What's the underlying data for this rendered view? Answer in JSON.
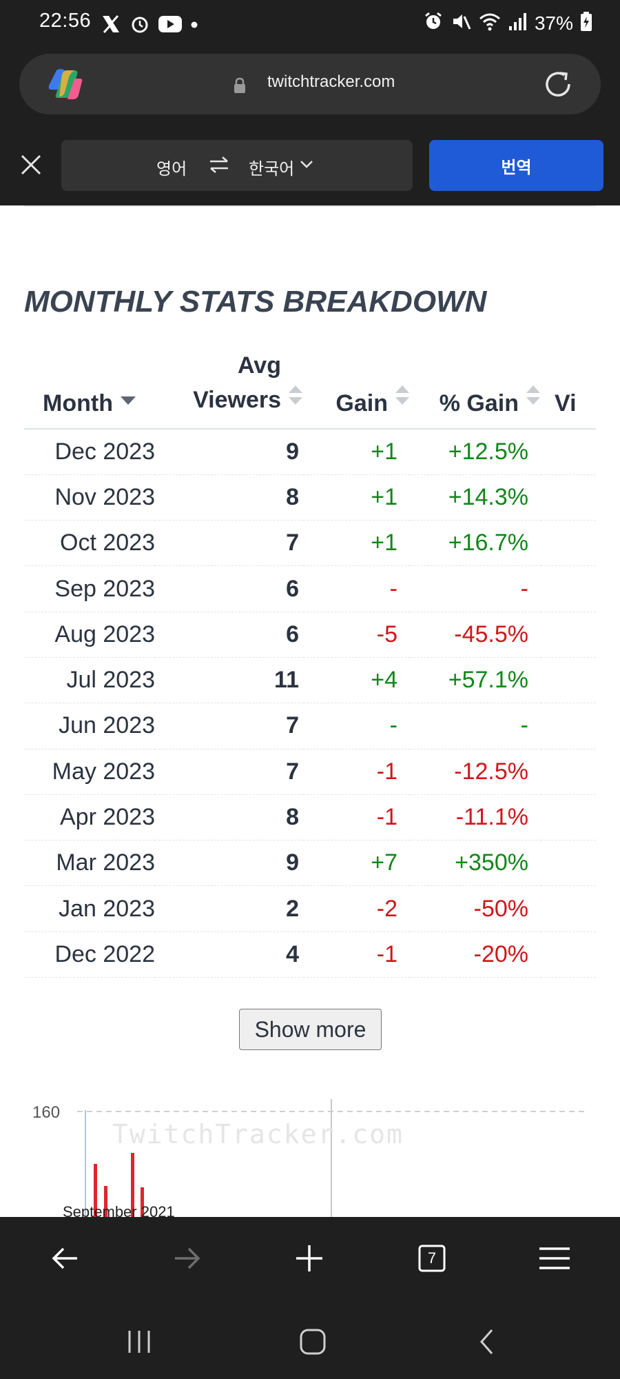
{
  "status_bar": {
    "time": "22:56",
    "battery": "37%",
    "left_icons": [
      "x-logo-icon",
      "alarm-clock-icon",
      "youtube-icon",
      "dot-icon"
    ],
    "right_icons": [
      "alarm-icon",
      "mute-icon",
      "wifi-icon",
      "signal-icon",
      "battery-charging-icon"
    ]
  },
  "browser": {
    "url": "twitchtracker.com",
    "tab_count": "7",
    "icons": [
      "copilot-logo-icon",
      "lock-icon",
      "reload-icon",
      "back-arrow-icon",
      "forward-arrow-icon",
      "plus-icon",
      "tabs-icon",
      "menu-icon"
    ]
  },
  "translate_bar": {
    "source_lang": "영어",
    "target_lang": "한국어",
    "translate_button": "번역"
  },
  "section_title": "MONTHLY STATS BREAKDOWN",
  "table": {
    "headers": {
      "month": "Month",
      "avg_viewers_line1": "Avg",
      "avg_viewers_line2": "Viewers",
      "gain": "Gain",
      "pct_gain": "% Gain",
      "next_column_partial": "Vi"
    },
    "rows": [
      {
        "month": "Dec 2023",
        "avg_viewers": "9",
        "gain": "+1",
        "pct_gain": "+12.5%",
        "trend": "pos"
      },
      {
        "month": "Nov 2023",
        "avg_viewers": "8",
        "gain": "+1",
        "pct_gain": "+14.3%",
        "trend": "pos"
      },
      {
        "month": "Oct 2023",
        "avg_viewers": "7",
        "gain": "+1",
        "pct_gain": "+16.7%",
        "trend": "pos"
      },
      {
        "month": "Sep 2023",
        "avg_viewers": "6",
        "gain": "-",
        "pct_gain": "-",
        "trend": "neg"
      },
      {
        "month": "Aug 2023",
        "avg_viewers": "6",
        "gain": "-5",
        "pct_gain": "-45.5%",
        "trend": "neg"
      },
      {
        "month": "Jul 2023",
        "avg_viewers": "11",
        "gain": "+4",
        "pct_gain": "+57.1%",
        "trend": "pos"
      },
      {
        "month": "Jun 2023",
        "avg_viewers": "7",
        "gain": "-",
        "pct_gain": "-",
        "trend": "pos"
      },
      {
        "month": "May 2023",
        "avg_viewers": "7",
        "gain": "-1",
        "pct_gain": "-12.5%",
        "trend": "neg"
      },
      {
        "month": "Apr 2023",
        "avg_viewers": "8",
        "gain": "-1",
        "pct_gain": "-11.1%",
        "trend": "neg"
      },
      {
        "month": "Mar 2023",
        "avg_viewers": "9",
        "gain": "+7",
        "pct_gain": "+350%",
        "trend": "pos"
      },
      {
        "month": "Jan 2023",
        "avg_viewers": "2",
        "gain": "-2",
        "pct_gain": "-50%",
        "trend": "neg"
      },
      {
        "month": "Dec 2022",
        "avg_viewers": "4",
        "gain": "-1",
        "pct_gain": "-20%",
        "trend": "neg"
      }
    ]
  },
  "show_more": "Show more",
  "chart_preview": {
    "y_tick": "160",
    "watermark": "TwitchTracker.com",
    "x_label": "September 2021"
  },
  "colors": {
    "positive": "#13861a",
    "negative": "#d0161a",
    "translate_button": "#1f5bd6",
    "chrome_background": "#1f1f1f"
  }
}
